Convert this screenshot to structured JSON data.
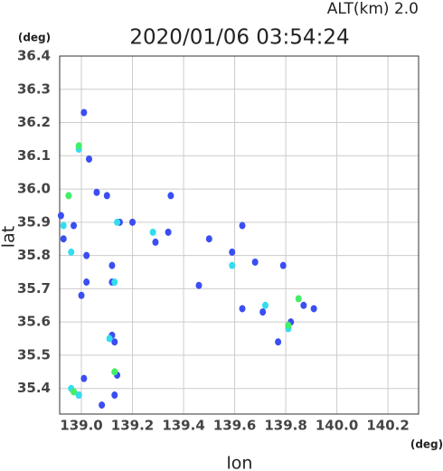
{
  "chart_data": {
    "type": "scatter",
    "title": "2020/01/06 03:54:24",
    "annotation": "ALT(km)  2.0",
    "y_unit": "(deg)",
    "x_unit": "(deg)",
    "x_label": "lon",
    "y_label": "lat",
    "xlim": [
      138.915,
      140.32
    ],
    "ylim": [
      35.323,
      36.4
    ],
    "xticks": [
      {
        "value": 139,
        "label": "139.0"
      },
      139.2,
      139.4,
      139.6,
      139.8,
      {
        "value": 140,
        "label": "140.0"
      },
      140.2
    ],
    "yticks": [
      {
        "value": 35.4,
        "label": "35.4"
      },
      35.5,
      35.6,
      35.7,
      35.8,
      35.9,
      {
        "value": 36,
        "label": "36.0"
      },
      36.1,
      36.2,
      36.3,
      36.4
    ],
    "grid": true,
    "series": [
      {
        "color": "#3b4ef2",
        "x": [
          139.01,
          139.03,
          139.06,
          139.1,
          138.92,
          138.93,
          138.97,
          139.02,
          139.02,
          139.12,
          139.12,
          139.0,
          139.12,
          139.13,
          139.14,
          139.01,
          138.99,
          139.13,
          139.35,
          139.15,
          139.2,
          139.29,
          139.34,
          139.5,
          139.59,
          139.63,
          139.68,
          139.79,
          139.46,
          139.63,
          139.71,
          139.77,
          139.87,
          139.91,
          139.82,
          139.08
        ],
        "values": [
          36.23,
          36.09,
          35.99,
          35.98,
          35.92,
          35.85,
          35.89,
          35.8,
          35.72,
          35.77,
          35.72,
          35.68,
          35.56,
          35.54,
          35.44,
          35.43,
          35.38,
          35.38,
          35.98,
          35.9,
          35.9,
          35.84,
          35.87,
          35.85,
          35.81,
          35.89,
          35.78,
          35.77,
          35.71,
          35.64,
          35.63,
          35.54,
          35.65,
          35.64,
          35.6,
          35.35
        ]
      },
      {
        "color": "#33ddee",
        "x": [
          138.93,
          138.96,
          139.13,
          139.14,
          139.11,
          138.99,
          139.72,
          139.81,
          139.59,
          139.28,
          138.99,
          138.96
        ],
        "values": [
          35.89,
          35.81,
          35.72,
          35.9,
          35.55,
          36.12,
          35.65,
          35.58,
          35.77,
          35.87,
          35.38,
          35.4
        ]
      },
      {
        "color": "#44ee66",
        "x": [
          138.95,
          139.13,
          139.81,
          139.85,
          138.97,
          138.99
        ],
        "values": [
          35.98,
          35.45,
          35.59,
          35.67,
          35.39,
          36.13
        ]
      }
    ]
  }
}
